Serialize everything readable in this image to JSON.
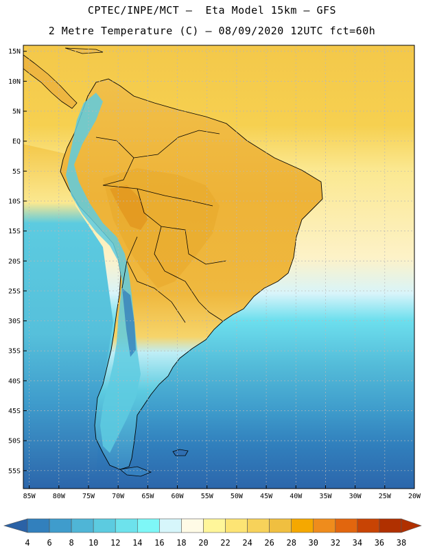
{
  "header": {
    "line1": "CPTEC/INPE/MCT –  Eta Model 15km – GFS",
    "line2": "2 Metre Temperature (C) – 08/09/2020 12UTC fct=60h"
  },
  "axes": {
    "lat_labels": [
      "15N",
      "10N",
      "5N",
      "EQ",
      "5S",
      "10S",
      "15S",
      "20S",
      "25S",
      "30S",
      "35S",
      "40S",
      "45S",
      "50S",
      "55S"
    ],
    "lon_labels": [
      "85W",
      "80W",
      "75W",
      "70W",
      "65W",
      "60W",
      "55W",
      "50W",
      "45W",
      "40W",
      "35W",
      "30W",
      "25W",
      "20W"
    ],
    "lat_range": [
      -58,
      16
    ],
    "lon_range": [
      -86,
      -20
    ]
  },
  "colorbar": {
    "labels": [
      "4",
      "6",
      "8",
      "10",
      "12",
      "14",
      "16",
      "18",
      "20",
      "22",
      "24",
      "26",
      "28",
      "30",
      "32",
      "34",
      "36",
      "38"
    ],
    "colors": [
      "#2b62a6",
      "#3280bd",
      "#3f9ccc",
      "#4fb5d6",
      "#5ccbe0",
      "#6de2ec",
      "#7ef7f7",
      "#d6f6fb",
      "#fffbe6",
      "#fff69a",
      "#fde474",
      "#f7d25a",
      "#f0bf40",
      "#f5a800",
      "#ef8c1c",
      "#e2660e",
      "#c84404",
      "#b03000"
    ]
  },
  "colors": {
    "ocean_north": "#f6d04f",
    "ocean_south_warm": "#5bc4df",
    "ocean_south_cold": "#3580c0",
    "land_warm": "#efba3e",
    "land_hot": "#e6a020",
    "andes_cold": "#58c6de"
  }
}
